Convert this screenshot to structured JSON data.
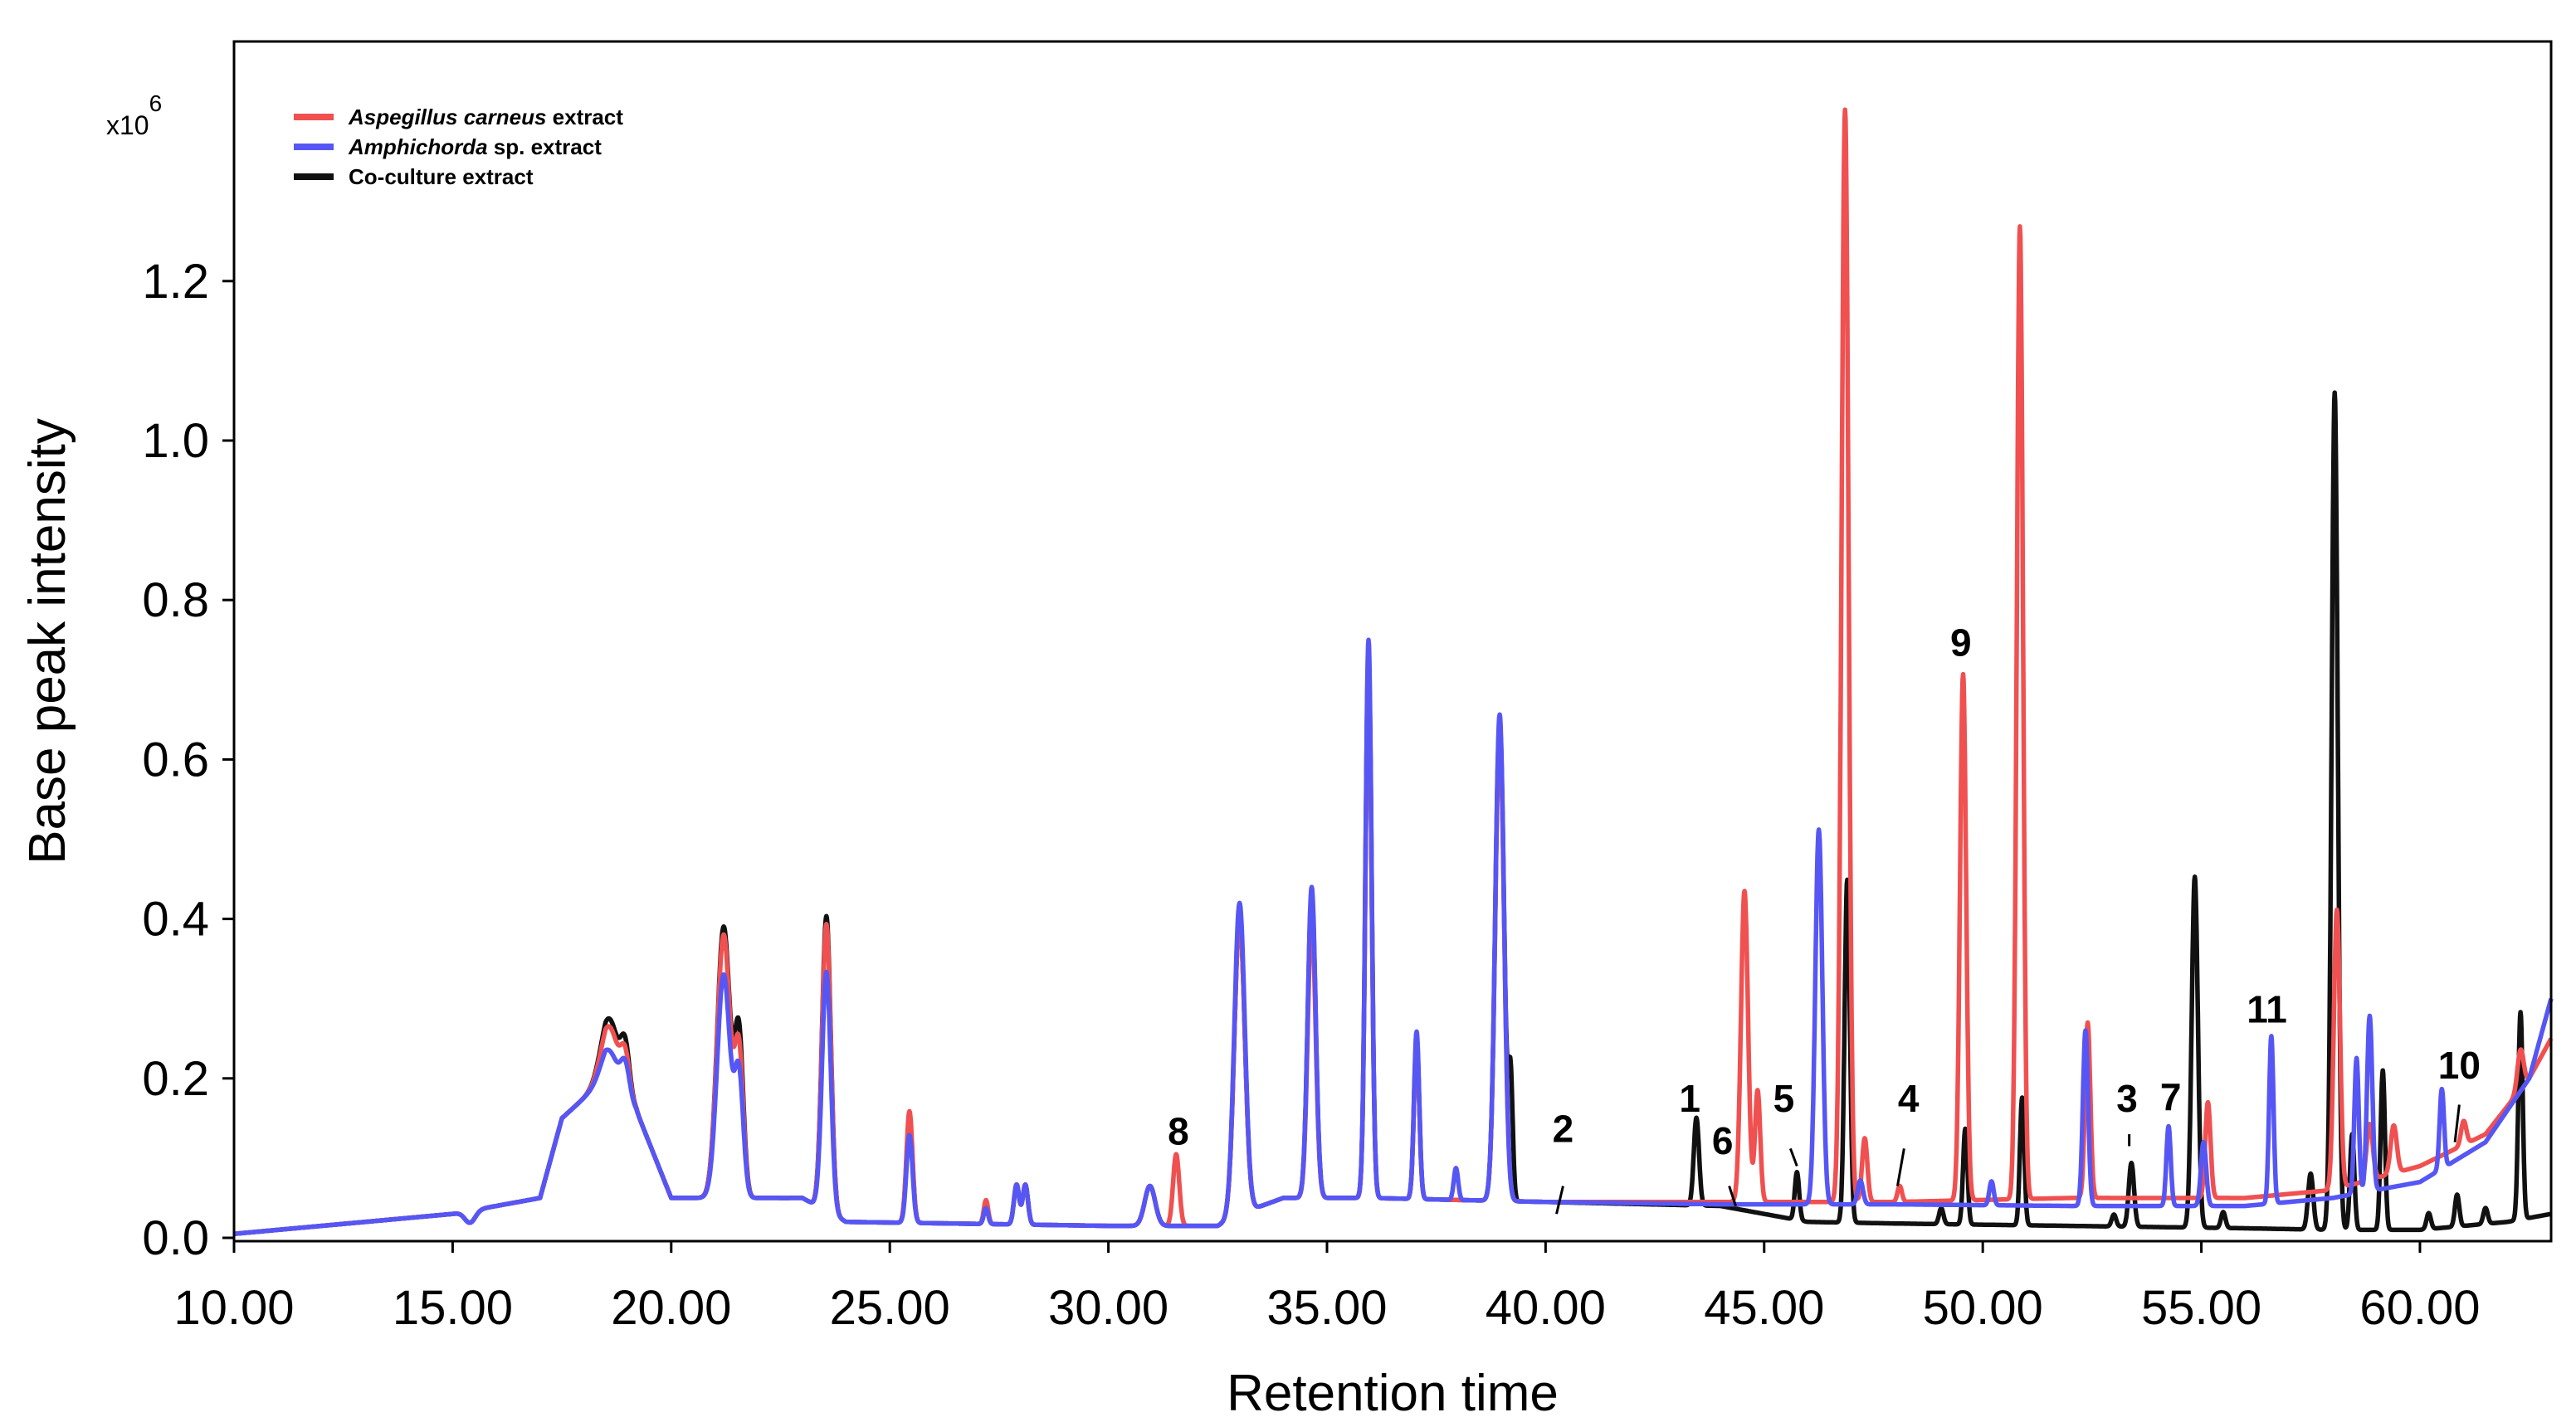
{
  "chart_data": {
    "type": "line",
    "title": "",
    "xlabel": "Retention time",
    "ylabel": "Base peak intensity",
    "xlim": [
      10.0,
      63.0
    ],
    "ylim": [
      0.0,
      1.5
    ],
    "y_multiplier": {
      "prefix": "x10",
      "exponent": "6"
    },
    "x_ticks": [
      "10.00",
      "15.00",
      "20.00",
      "25.00",
      "30.00",
      "35.00",
      "40.00",
      "45.00",
      "50.00",
      "55.00",
      "60.00"
    ],
    "x_tick_values": [
      10,
      15,
      20,
      25,
      30,
      35,
      40,
      45,
      50,
      55,
      60
    ],
    "y_ticks": [
      "0.0",
      "0.2",
      "0.4",
      "0.6",
      "0.8",
      "1.0",
      "1.2"
    ],
    "y_tick_values": [
      0.0,
      0.2,
      0.4,
      0.6,
      0.8,
      1.0,
      1.2
    ],
    "grid": false,
    "legend_position": "top-left",
    "series": [
      {
        "key": "red",
        "name_italic": "Aspegillus carneus",
        "name_rest": " extract",
        "color": "#f05050",
        "baseline": [
          [
            10,
            0.005
          ],
          [
            15,
            0.03
          ],
          [
            17,
            0.05
          ],
          [
            17.5,
            0.15
          ],
          [
            18.5,
            0.2
          ],
          [
            19.2,
            0.16
          ],
          [
            20,
            0.05
          ],
          [
            20.8,
            0.05
          ],
          [
            22,
            0.05
          ],
          [
            23,
            0.05
          ],
          [
            24,
            0.02
          ],
          [
            30,
            0.015
          ],
          [
            32.5,
            0.015
          ],
          [
            33,
            0.03
          ],
          [
            34,
            0.05
          ],
          [
            36,
            0.05
          ],
          [
            40,
            0.045
          ],
          [
            44,
            0.045
          ],
          [
            48,
            0.045
          ],
          [
            52,
            0.05
          ],
          [
            54,
            0.05
          ],
          [
            56,
            0.05
          ],
          [
            58,
            0.06
          ],
          [
            60,
            0.09
          ],
          [
            61.5,
            0.13
          ],
          [
            62.5,
            0.2
          ],
          [
            63,
            0.25
          ]
        ],
        "peaks": [
          [
            15.4,
            -0.015,
            0.12
          ],
          [
            18.6,
            0.07,
            0.2
          ],
          [
            18.95,
            0.05,
            0.1
          ],
          [
            21.2,
            0.33,
            0.15
          ],
          [
            21.55,
            0.18,
            0.1
          ],
          [
            23.55,
            0.36,
            0.1
          ],
          [
            25.45,
            0.14,
            0.07
          ],
          [
            27.2,
            0.03,
            0.05
          ],
          [
            27.9,
            0.05,
            0.06
          ],
          [
            28.1,
            0.05,
            0.06
          ],
          [
            30.95,
            0.05,
            0.12
          ],
          [
            31.55,
            0.09,
            0.07
          ],
          [
            33.0,
            0.37,
            0.12
          ],
          [
            34.65,
            0.35,
            0.09
          ],
          [
            35.95,
            0.67,
            0.07
          ],
          [
            37.05,
            0.2,
            0.06
          ],
          [
            38.95,
            0.59,
            0.1
          ],
          [
            44.55,
            0.39,
            0.08
          ],
          [
            44.85,
            0.14,
            0.06
          ],
          [
            46.85,
            1.37,
            0.08
          ],
          [
            47.3,
            0.08,
            0.06
          ],
          [
            48.1,
            0.02,
            0.05
          ],
          [
            49.55,
            0.66,
            0.07
          ],
          [
            50.85,
            1.22,
            0.07
          ],
          [
            52.4,
            0.22,
            0.06
          ],
          [
            55.15,
            0.12,
            0.06
          ],
          [
            58.1,
            0.35,
            0.07
          ],
          [
            58.85,
            0.07,
            0.07
          ],
          [
            59.4,
            0.06,
            0.07
          ],
          [
            61.0,
            0.03,
            0.06
          ],
          [
            62.3,
            0.05,
            0.07
          ]
        ]
      },
      {
        "key": "blue",
        "name_italic": "Amphichorda",
        "name_rest": " sp. extract",
        "color": "#5656f5",
        "baseline": [
          [
            10,
            0.005
          ],
          [
            15,
            0.03
          ],
          [
            17,
            0.05
          ],
          [
            17.5,
            0.15
          ],
          [
            18.5,
            0.2
          ],
          [
            19.2,
            0.16
          ],
          [
            20,
            0.05
          ],
          [
            20.8,
            0.05
          ],
          [
            22,
            0.05
          ],
          [
            23,
            0.05
          ],
          [
            24,
            0.02
          ],
          [
            30,
            0.015
          ],
          [
            32.5,
            0.015
          ],
          [
            33,
            0.03
          ],
          [
            34,
            0.05
          ],
          [
            36,
            0.05
          ],
          [
            40,
            0.045
          ],
          [
            44,
            0.042
          ],
          [
            48,
            0.042
          ],
          [
            52,
            0.04
          ],
          [
            56,
            0.04
          ],
          [
            58,
            0.05
          ],
          [
            60,
            0.07
          ],
          [
            61.5,
            0.12
          ],
          [
            62.5,
            0.2
          ],
          [
            63,
            0.3
          ]
        ],
        "peaks": [
          [
            15.4,
            -0.015,
            0.12
          ],
          [
            18.6,
            0.04,
            0.2
          ],
          [
            18.95,
            0.04,
            0.1
          ],
          [
            21.2,
            0.28,
            0.15
          ],
          [
            21.55,
            0.15,
            0.1
          ],
          [
            23.55,
            0.3,
            0.1
          ],
          [
            25.45,
            0.11,
            0.07
          ],
          [
            27.2,
            0.02,
            0.05
          ],
          [
            27.9,
            0.05,
            0.06
          ],
          [
            28.1,
            0.05,
            0.06
          ],
          [
            30.95,
            0.05,
            0.12
          ],
          [
            33.0,
            0.39,
            0.12
          ],
          [
            34.65,
            0.39,
            0.09
          ],
          [
            35.95,
            0.7,
            0.07
          ],
          [
            37.05,
            0.21,
            0.06
          ],
          [
            37.95,
            0.04,
            0.05
          ],
          [
            38.95,
            0.61,
            0.1
          ],
          [
            46.25,
            0.47,
            0.08
          ],
          [
            47.2,
            0.03,
            0.06
          ],
          [
            50.2,
            0.03,
            0.05
          ],
          [
            52.35,
            0.22,
            0.06
          ],
          [
            54.25,
            0.1,
            0.05
          ],
          [
            55.05,
            0.08,
            0.06
          ],
          [
            56.6,
            0.21,
            0.05
          ],
          [
            58.55,
            0.17,
            0.05
          ],
          [
            58.85,
            0.22,
            0.06
          ],
          [
            60.5,
            0.1,
            0.05
          ]
        ]
      },
      {
        "key": "black",
        "name_italic": "",
        "name_rest": "Co-culture extract",
        "color": "#111111",
        "baseline": [
          [
            10,
            0.005
          ],
          [
            15,
            0.03
          ],
          [
            17,
            0.05
          ],
          [
            17.5,
            0.15
          ],
          [
            18.5,
            0.2
          ],
          [
            19.2,
            0.16
          ],
          [
            20,
            0.05
          ],
          [
            20.8,
            0.05
          ],
          [
            22,
            0.05
          ],
          [
            23,
            0.05
          ],
          [
            24,
            0.02
          ],
          [
            30,
            0.015
          ],
          [
            32.5,
            0.015
          ],
          [
            33,
            0.03
          ],
          [
            34,
            0.05
          ],
          [
            36,
            0.05
          ],
          [
            40,
            0.045
          ],
          [
            44,
            0.04
          ],
          [
            46,
            0.02
          ],
          [
            48,
            0.018
          ],
          [
            52,
            0.015
          ],
          [
            56,
            0.012
          ],
          [
            58,
            0.01
          ],
          [
            60,
            0.01
          ],
          [
            62,
            0.02
          ],
          [
            63,
            0.03
          ]
        ],
        "peaks": [
          [
            15.4,
            -0.015,
            0.12
          ],
          [
            18.6,
            0.08,
            0.2
          ],
          [
            18.95,
            0.06,
            0.1
          ],
          [
            21.2,
            0.34,
            0.15
          ],
          [
            21.55,
            0.2,
            0.1
          ],
          [
            23.55,
            0.37,
            0.1
          ],
          [
            25.45,
            0.13,
            0.07
          ],
          [
            27.2,
            0.02,
            0.05
          ],
          [
            27.9,
            0.05,
            0.06
          ],
          [
            28.1,
            0.05,
            0.06
          ],
          [
            30.95,
            0.05,
            0.12
          ],
          [
            33.0,
            0.37,
            0.12
          ],
          [
            34.65,
            0.38,
            0.09
          ],
          [
            35.95,
            0.68,
            0.07
          ],
          [
            37.05,
            0.2,
            0.06
          ],
          [
            38.95,
            0.6,
            0.1
          ],
          [
            39.2,
            0.15,
            0.05
          ],
          [
            43.45,
            0.11,
            0.06
          ],
          [
            45.75,
            0.06,
            0.05
          ],
          [
            46.9,
            0.43,
            0.06
          ],
          [
            49.05,
            0.02,
            0.05
          ],
          [
            49.6,
            0.12,
            0.05
          ],
          [
            50.9,
            0.16,
            0.05
          ],
          [
            53.0,
            0.015,
            0.05
          ],
          [
            53.4,
            0.08,
            0.06
          ],
          [
            54.85,
            0.44,
            0.07
          ],
          [
            55.5,
            0.02,
            0.05
          ],
          [
            57.5,
            0.07,
            0.06
          ],
          [
            58.05,
            1.05,
            0.07
          ],
          [
            58.45,
            0.12,
            0.05
          ],
          [
            59.15,
            0.2,
            0.05
          ],
          [
            60.2,
            0.02,
            0.05
          ],
          [
            60.85,
            0.04,
            0.05
          ],
          [
            61.5,
            0.02,
            0.05
          ],
          [
            62.3,
            0.26,
            0.05
          ]
        ]
      }
    ],
    "annotations": [
      {
        "label": "8",
        "x": 31.6,
        "y": 0.117,
        "tick": false
      },
      {
        "label": "2",
        "x": 40.4,
        "y": 0.12,
        "tick": true,
        "tick_from": [
          40.4,
          0.065
        ],
        "tick_to": [
          40.25,
          0.03
        ]
      },
      {
        "label": "1",
        "x": 43.3,
        "y": 0.158,
        "tick": false
      },
      {
        "label": "6",
        "x": 44.05,
        "y": 0.105,
        "tick": true,
        "tick_from": [
          44.2,
          0.065
        ],
        "tick_to": [
          44.35,
          0.04
        ]
      },
      {
        "label": "5",
        "x": 45.45,
        "y": 0.158,
        "tick": true,
        "tick_from": [
          45.6,
          0.112
        ],
        "tick_to": [
          45.75,
          0.09
        ]
      },
      {
        "label": "4",
        "x": 48.3,
        "y": 0.158,
        "tick": true,
        "tick_from": [
          48.2,
          0.112
        ],
        "tick_to": [
          48.05,
          0.065
        ]
      },
      {
        "label": "9",
        "x": 49.5,
        "y": 0.73,
        "tick": false
      },
      {
        "label": "3",
        "x": 53.3,
        "y": 0.158,
        "tick": true,
        "tick_from": [
          53.35,
          0.13
        ],
        "tick_to": [
          53.35,
          0.115
        ]
      },
      {
        "label": "7",
        "x": 54.3,
        "y": 0.16,
        "tick": false
      },
      {
        "label": "11",
        "x": 56.5,
        "y": 0.27,
        "tick": false
      },
      {
        "label": "10",
        "x": 60.9,
        "y": 0.2,
        "tick": true,
        "tick_from": [
          60.9,
          0.167
        ],
        "tick_to": [
          60.8,
          0.12
        ]
      }
    ]
  }
}
